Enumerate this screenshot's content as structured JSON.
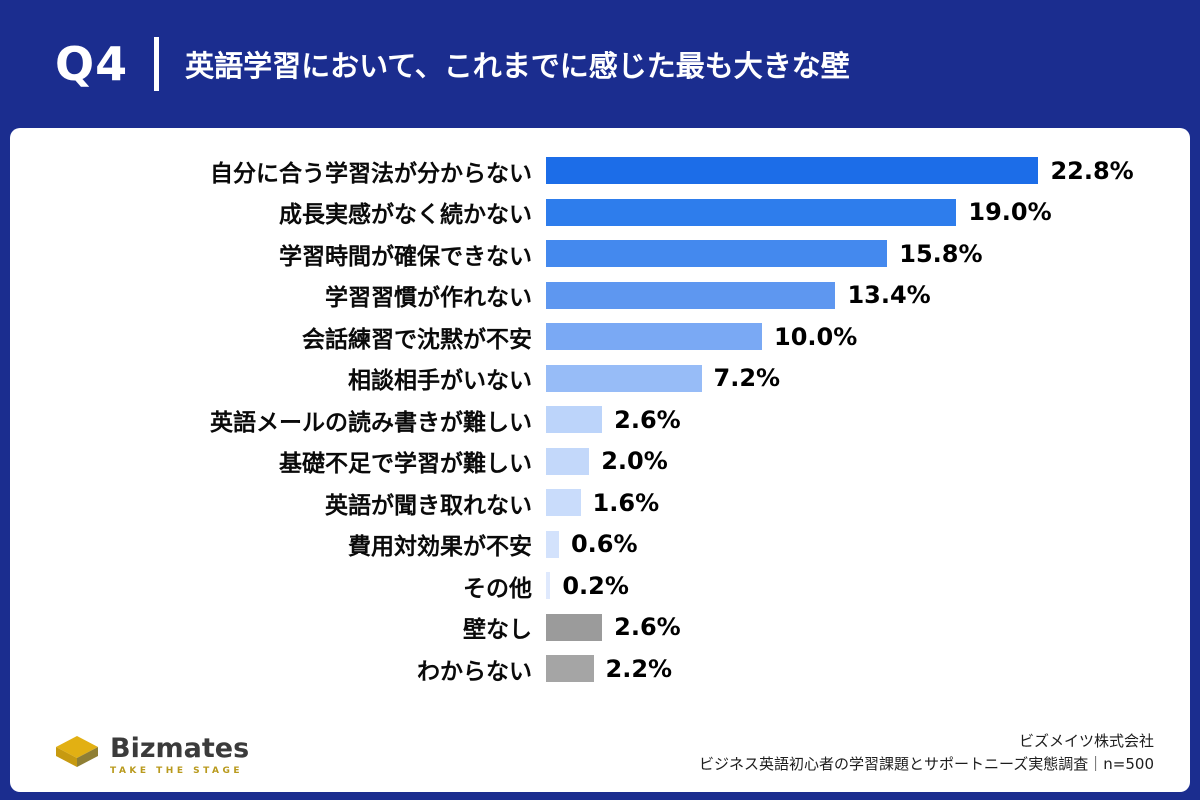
{
  "header": {
    "q_label": "Q4",
    "title": "英語学習において、これまでに感じた最も大きな壁"
  },
  "chart_data": {
    "type": "bar",
    "orientation": "horizontal",
    "units": "%",
    "xlim": [
      0,
      25
    ],
    "categories": [
      "自分に合う学習法が分からない",
      "成長実感がなく続かない",
      "学習時間が確保できない",
      "学習習慣が作れない",
      "会話練習で沈黙が不安",
      "相談相手がいない",
      "英語メールの読み書きが難しい",
      "基礎不足で学習が難しい",
      "英語が聞き取れない",
      "費用対効果が不安",
      "その他",
      "壁なし",
      "わからない"
    ],
    "values": [
      22.8,
      19.0,
      15.8,
      13.4,
      10.0,
      7.2,
      2.6,
      2.0,
      1.6,
      0.6,
      0.2,
      2.6,
      2.2
    ],
    "value_labels": [
      "22.8%",
      "19.0%",
      "15.8%",
      "13.4%",
      "10.0%",
      "7.2%",
      "2.6%",
      "2.0%",
      "1.6%",
      "0.6%",
      "0.2%",
      "2.6%",
      "2.2%"
    ],
    "bar_colors": [
      "#1C6DE8",
      "#2E7DEC",
      "#4489EE",
      "#5E97F0",
      "#7AA9F4",
      "#97BCF7",
      "#BCD4FA",
      "#C3D8FA",
      "#C9DCFB",
      "#D3E2FC",
      "#DFE9FD",
      "#9B9B9B",
      "#A5A5A5"
    ]
  },
  "footer": {
    "logo_text": "Bizmates",
    "logo_tagline": "TAKE THE STAGE",
    "company": "ビズメイツ株式会社",
    "survey": "ビジネス英語初心者の学習課題とサポートニーズ実態調査｜n=500"
  },
  "colors": {
    "background": "#1B2D8F",
    "card": "#FFFFFF",
    "logo_gold": "#E2B013",
    "gray_bar": "#9B9B9B"
  }
}
